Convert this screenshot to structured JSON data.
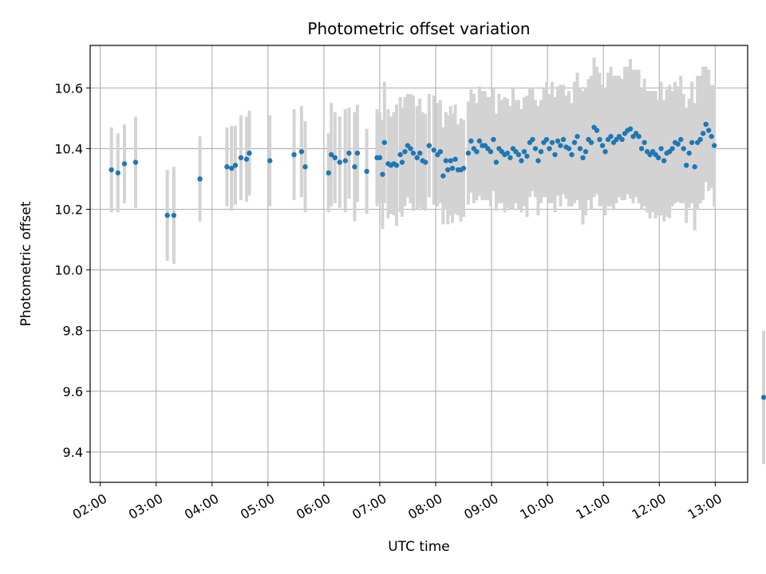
{
  "chart_data": {
    "type": "scatter",
    "title": "Photometric offset variation",
    "xlabel": "UTC time",
    "ylabel": "Photometric offset",
    "x_tick_labels": [
      "02:00",
      "03:00",
      "04:00",
      "05:00",
      "06:00",
      "07:00",
      "08:00",
      "09:00",
      "10:00",
      "11:00",
      "12:00",
      "13:00"
    ],
    "y_tick_labels": [
      "9.4",
      "9.6",
      "9.8",
      "10.0",
      "10.2",
      "10.4",
      "10.6"
    ],
    "yticks": [
      9.4,
      9.6,
      9.8,
      10.0,
      10.2,
      10.4,
      10.6
    ],
    "ylim": [
      9.3,
      10.74
    ],
    "xlim_hours": [
      1.82,
      13.58
    ],
    "grid": true,
    "error_bars": true,
    "colors": {
      "point": "#1f77b4",
      "error_bar": "#d3d3d3",
      "grid": "#b0b0b0"
    },
    "series": [
      {
        "points": [
          [
            "02:12",
            10.33,
            0.14
          ],
          [
            "02:19",
            10.32,
            0.13
          ],
          [
            "02:26",
            10.35,
            0.13
          ],
          [
            "02:38",
            10.355,
            0.15
          ],
          [
            "03:12",
            10.18,
            0.15
          ],
          [
            "03:19",
            10.18,
            0.16
          ],
          [
            "03:47",
            10.3,
            0.14
          ],
          [
            "04:16",
            10.34,
            0.13
          ],
          [
            "04:21",
            10.335,
            0.14
          ],
          [
            "04:25",
            10.345,
            0.13
          ],
          [
            "04:31",
            10.37,
            0.14
          ],
          [
            "04:37",
            10.365,
            0.14
          ],
          [
            "04:40",
            10.385,
            0.14
          ],
          [
            "05:02",
            10.36,
            0.15
          ],
          [
            "05:28",
            10.38,
            0.15
          ],
          [
            "05:36",
            10.39,
            0.15
          ],
          [
            "05:40",
            10.34,
            0.15
          ],
          [
            "06:05",
            10.32,
            0.13
          ],
          [
            "06:08",
            10.38,
            0.17
          ],
          [
            "06:12",
            10.37,
            0.15
          ],
          [
            "06:17",
            10.355,
            0.15
          ],
          [
            "06:23",
            10.36,
            0.17
          ],
          [
            "06:27",
            10.385,
            0.15
          ],
          [
            "06:33",
            10.34,
            0.18
          ],
          [
            "06:36",
            10.385,
            0.16
          ],
          [
            "06:46",
            10.325,
            0.14
          ],
          [
            "06:57",
            10.37,
            0.16
          ],
          [
            "07:00",
            10.37,
            0.15
          ],
          [
            "07:03",
            10.315,
            0.18
          ],
          [
            "07:05",
            10.42,
            0.2
          ],
          [
            "07:09",
            10.35,
            0.18
          ],
          [
            "07:12",
            10.345,
            0.16
          ],
          [
            "07:15",
            10.35,
            0.17
          ],
          [
            "07:18",
            10.345,
            0.2
          ],
          [
            "07:22",
            10.38,
            0.19
          ],
          [
            "07:24",
            10.355,
            0.18
          ],
          [
            "07:27",
            10.39,
            0.18
          ],
          [
            "07:30",
            10.41,
            0.17
          ],
          [
            "07:33",
            10.4,
            0.18
          ],
          [
            "07:36",
            10.385,
            0.19
          ],
          [
            "07:40",
            10.37,
            0.17
          ],
          [
            "07:43",
            10.385,
            0.18
          ],
          [
            "07:46",
            10.36,
            0.16
          ],
          [
            "07:49",
            10.355,
            0.16
          ],
          [
            "07:53",
            10.41,
            0.17
          ],
          [
            "07:58",
            10.395,
            0.18
          ],
          [
            "08:02",
            10.38,
            0.17
          ],
          [
            "08:05",
            10.39,
            0.17
          ],
          [
            "08:08",
            10.31,
            0.16
          ],
          [
            "08:11",
            10.36,
            0.16
          ],
          [
            "08:13",
            10.33,
            0.18
          ],
          [
            "08:16",
            10.36,
            0.18
          ],
          [
            "08:18",
            10.335,
            0.18
          ],
          [
            "08:21",
            10.365,
            0.18
          ],
          [
            "08:24",
            10.33,
            0.15
          ],
          [
            "08:27",
            10.33,
            0.17
          ],
          [
            "08:30",
            10.335,
            0.16
          ],
          [
            "08:35",
            10.385,
            0.17
          ],
          [
            "08:38",
            10.425,
            0.17
          ],
          [
            "08:41",
            10.4,
            0.18
          ],
          [
            "08:44",
            10.39,
            0.16
          ],
          [
            "08:47",
            10.425,
            0.18
          ],
          [
            "08:50",
            10.41,
            0.18
          ],
          [
            "08:53",
            10.41,
            0.18
          ],
          [
            "08:56",
            10.4,
            0.17
          ],
          [
            "08:59",
            10.39,
            0.18
          ],
          [
            "09:02",
            10.43,
            0.17
          ],
          [
            "09:05",
            10.355,
            0.16
          ],
          [
            "09:08",
            10.4,
            0.18
          ],
          [
            "09:11",
            10.39,
            0.17
          ],
          [
            "09:14",
            10.38,
            0.19
          ],
          [
            "09:17",
            10.385,
            0.18
          ],
          [
            "09:20",
            10.37,
            0.17
          ],
          [
            "09:23",
            10.4,
            0.2
          ],
          [
            "09:26",
            10.39,
            0.17
          ],
          [
            "09:29",
            10.38,
            0.18
          ],
          [
            "09:32",
            10.36,
            0.17
          ],
          [
            "09:35",
            10.39,
            0.18
          ],
          [
            "09:38",
            10.375,
            0.2
          ],
          [
            "09:41",
            10.42,
            0.18
          ],
          [
            "09:44",
            10.43,
            0.17
          ],
          [
            "09:47",
            10.4,
            0.16
          ],
          [
            "09:50",
            10.36,
            0.18
          ],
          [
            "09:53",
            10.39,
            0.17
          ],
          [
            "09:56",
            10.42,
            0.18
          ],
          [
            "09:59",
            10.43,
            0.19
          ],
          [
            "10:02",
            10.4,
            0.18
          ],
          [
            "10:05",
            10.42,
            0.2
          ],
          [
            "10:08",
            10.38,
            0.19
          ],
          [
            "10:11",
            10.425,
            0.18
          ],
          [
            "10:14",
            10.41,
            0.2
          ],
          [
            "10:17",
            10.43,
            0.18
          ],
          [
            "10:20",
            10.405,
            0.17
          ],
          [
            "10:23",
            10.4,
            0.19
          ],
          [
            "10:26",
            10.38,
            0.17
          ],
          [
            "10:29",
            10.42,
            0.2
          ],
          [
            "10:32",
            10.44,
            0.21
          ],
          [
            "10:35",
            10.4,
            0.2
          ],
          [
            "10:38",
            10.37,
            0.22
          ],
          [
            "10:41",
            10.39,
            0.21
          ],
          [
            "10:44",
            10.43,
            0.2
          ],
          [
            "10:47",
            10.42,
            0.22
          ],
          [
            "10:50",
            10.47,
            0.23
          ],
          [
            "10:53",
            10.46,
            0.21
          ],
          [
            "10:56",
            10.43,
            0.22
          ],
          [
            "10:59",
            10.41,
            0.2
          ],
          [
            "11:02",
            10.39,
            0.21
          ],
          [
            "11:05",
            10.43,
            0.22
          ],
          [
            "11:08",
            10.44,
            0.23
          ],
          [
            "11:11",
            10.42,
            0.22
          ],
          [
            "11:14",
            10.43,
            0.21
          ],
          [
            "11:17",
            10.44,
            0.2
          ],
          [
            "11:20",
            10.43,
            0.2
          ],
          [
            "11:23",
            10.45,
            0.22
          ],
          [
            "11:26",
            10.46,
            0.21
          ],
          [
            "11:29",
            10.465,
            0.23
          ],
          [
            "11:32",
            10.44,
            0.22
          ],
          [
            "11:35",
            10.45,
            0.21
          ],
          [
            "11:38",
            10.44,
            0.22
          ],
          [
            "11:41",
            10.4,
            0.2
          ],
          [
            "11:44",
            10.42,
            0.21
          ],
          [
            "11:47",
            10.39,
            0.2
          ],
          [
            "11:50",
            10.38,
            0.21
          ],
          [
            "11:53",
            10.39,
            0.2
          ],
          [
            "11:56",
            10.38,
            0.21
          ],
          [
            "11:59",
            10.37,
            0.19
          ],
          [
            "12:02",
            10.4,
            0.22
          ],
          [
            "12:05",
            10.36,
            0.2
          ],
          [
            "12:08",
            10.385,
            0.21
          ],
          [
            "12:11",
            10.39,
            0.22
          ],
          [
            "12:14",
            10.4,
            0.19
          ],
          [
            "12:17",
            10.42,
            0.2
          ],
          [
            "12:20",
            10.415,
            0.19
          ],
          [
            "12:23",
            10.43,
            0.21
          ],
          [
            "12:26",
            10.4,
            0.18
          ],
          [
            "12:29",
            10.345,
            0.19
          ],
          [
            "12:32",
            10.385,
            0.18
          ],
          [
            "12:35",
            10.42,
            0.2
          ],
          [
            "12:38",
            10.34,
            0.21
          ],
          [
            "12:41",
            10.42,
            0.22
          ],
          [
            "12:44",
            10.43,
            0.21
          ],
          [
            "12:47",
            10.45,
            0.22
          ],
          [
            "12:50",
            10.48,
            0.19
          ],
          [
            "12:53",
            10.46,
            0.2
          ],
          [
            "12:56",
            10.44,
            0.17
          ],
          [
            "12:59",
            10.41,
            0.2
          ],
          [
            "13:52",
            9.58,
            0.22
          ]
        ]
      }
    ]
  }
}
